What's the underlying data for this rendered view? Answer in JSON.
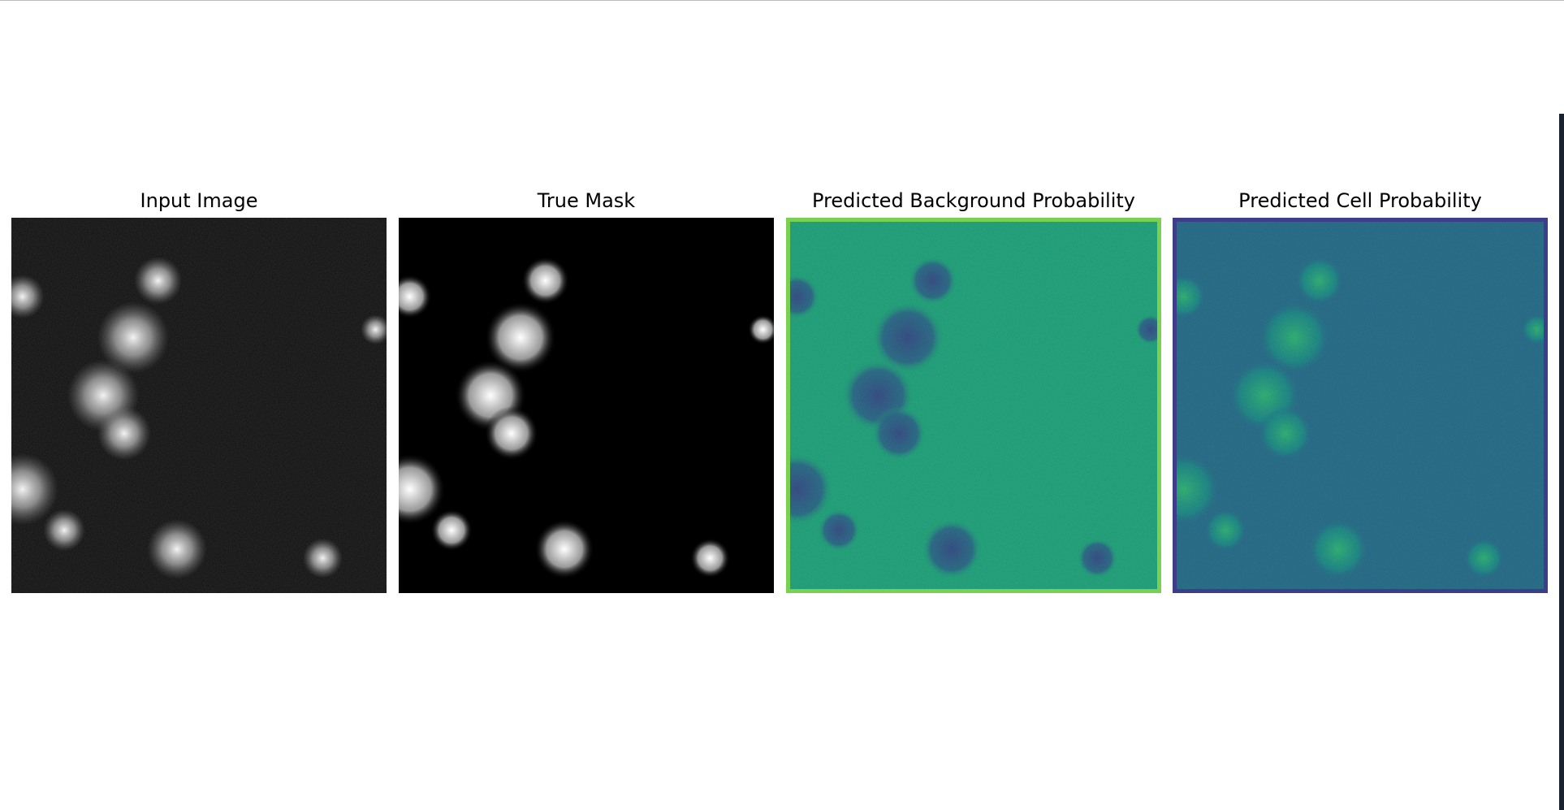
{
  "panels": [
    {
      "title": "Input Image"
    },
    {
      "title": "True Mask"
    },
    {
      "title": "Predicted Background Probability"
    },
    {
      "title": "Predicted Cell Probability"
    }
  ]
}
